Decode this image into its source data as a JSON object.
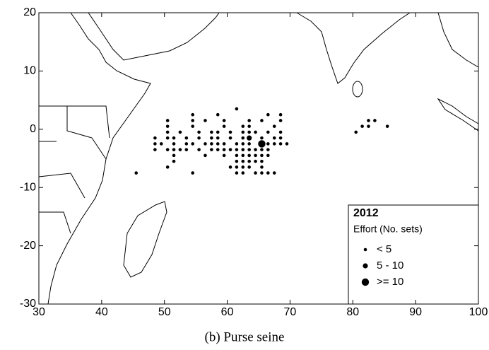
{
  "chart_data": {
    "type": "scatter",
    "caption": "(b) Purse seine",
    "legend_title": "2012",
    "legend_subtitle": "Effort (No. sets)",
    "legend": "lower right",
    "xlim": [
      30,
      100
    ],
    "ylim": [
      -30,
      20
    ],
    "xticks": [
      30,
      40,
      50,
      60,
      70,
      80,
      90,
      100
    ],
    "yticks": [
      -30,
      -20,
      -10,
      0,
      10,
      20
    ],
    "series": [
      {
        "name": "< 5",
        "color": "#000000",
        "x": [
          61.5,
          54.5,
          58.5,
          66.5,
          68.5,
          50.5,
          54.5,
          56.5,
          59.5,
          63.5,
          65.5,
          68.5,
          50.5,
          54.5,
          59.5,
          62.5,
          63.5,
          67.5,
          50.5,
          52.5,
          55.5,
          57.5,
          58.5,
          60.5,
          62.5,
          63.5,
          64.5,
          66.5,
          68.5,
          48.5,
          50.5,
          51.5,
          53.5,
          55.5,
          57.5,
          58.5,
          60.5,
          62.5,
          65.5,
          67.5,
          68.5,
          48.5,
          49.5,
          51.5,
          53.5,
          54.5,
          56.5,
          57.5,
          58.5,
          59.5,
          61.5,
          62.5,
          63.5,
          66.5,
          67.5,
          68.5,
          69.5,
          48.5,
          50.5,
          51.5,
          52.5,
          53.5,
          55.5,
          57.5,
          58.5,
          59.5,
          60.5,
          61.5,
          62.5,
          63.5,
          64.5,
          65.5,
          66.5,
          51.5,
          56.5,
          59.5,
          61.5,
          62.5,
          63.5,
          64.5,
          65.5,
          66.5,
          51.5,
          61.5,
          62.5,
          63.5,
          64.5,
          65.5,
          50.5,
          60.5,
          61.5,
          62.5,
          63.5,
          65.5,
          45.5,
          54.5,
          61.5,
          62.5,
          64.5,
          65.5,
          66.5,
          67.5,
          80.5,
          81.5,
          82.5,
          82.5,
          83.5,
          85.5
        ],
        "y": [
          3.5,
          2.5,
          2.5,
          2.5,
          2.5,
          1.5,
          1.5,
          1.5,
          1.5,
          1.5,
          1.5,
          1.5,
          0.5,
          0.5,
          0.5,
          0.5,
          0.5,
          0.5,
          -0.5,
          -0.5,
          -0.5,
          -0.5,
          -0.5,
          -0.5,
          -0.5,
          -0.5,
          -0.5,
          -0.5,
          -0.5,
          -1.5,
          -1.5,
          -1.5,
          -1.5,
          -1.5,
          -1.5,
          -1.5,
          -1.5,
          -1.5,
          -1.5,
          -1.5,
          -1.5,
          -2.5,
          -2.5,
          -2.5,
          -2.5,
          -2.5,
          -2.5,
          -2.5,
          -2.5,
          -2.5,
          -2.5,
          -2.5,
          -2.5,
          -2.5,
          -2.5,
          -2.5,
          -2.5,
          -3.5,
          -3.5,
          -3.5,
          -3.5,
          -3.5,
          -3.5,
          -3.5,
          -3.5,
          -3.5,
          -3.5,
          -3.5,
          -3.5,
          -3.5,
          -3.5,
          -3.5,
          -3.5,
          -4.5,
          -4.5,
          -4.5,
          -4.5,
          -4.5,
          -4.5,
          -4.5,
          -4.5,
          -4.5,
          -5.5,
          -5.5,
          -5.5,
          -5.5,
          -5.5,
          -5.5,
          -6.5,
          -6.5,
          -6.5,
          -6.5,
          -6.5,
          -6.5,
          -7.5,
          -7.5,
          -7.5,
          -7.5,
          -7.5,
          -7.5,
          -7.5,
          -7.5,
          -0.5,
          0.5,
          0.5,
          1.5,
          1.5,
          0.5
        ]
      },
      {
        "name": "5 - 10",
        "color": "#000000",
        "x": [
          63.5
        ],
        "y": [
          -1.5
        ]
      },
      {
        "name": ">= 10",
        "color": "#000000",
        "x": [
          65.5
        ],
        "y": [
          -2.5
        ]
      }
    ]
  }
}
